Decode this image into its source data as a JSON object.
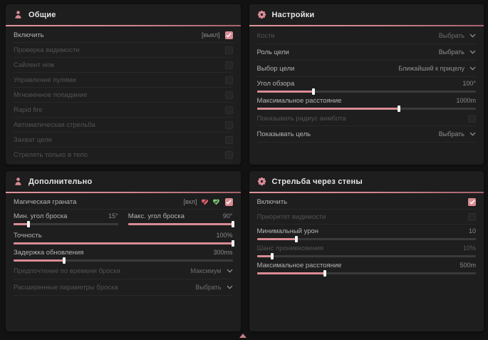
{
  "accent_color": "#d98b94",
  "panels": [
    {
      "title": "Общие",
      "icon": "aimbot-icon",
      "rows": [
        {
          "type": "toggle",
          "label": "Включить",
          "state_label": "[выкл]",
          "checked": true,
          "enabled": true
        },
        {
          "type": "toggle",
          "label": "Проверка видимости",
          "checked": false,
          "enabled": false
        },
        {
          "type": "toggle",
          "label": "Сайлент нож",
          "checked": false,
          "enabled": false
        },
        {
          "type": "toggle",
          "label": "Управление пулями",
          "checked": false,
          "enabled": false
        },
        {
          "type": "toggle",
          "label": "Мгновенное попадание",
          "checked": false,
          "enabled": false
        },
        {
          "type": "toggle",
          "label": "Rapid fire",
          "checked": false,
          "enabled": false
        },
        {
          "type": "toggle",
          "label": "Автоматическая стрельба",
          "checked": false,
          "enabled": false
        },
        {
          "type": "toggle",
          "label": "Захват цели",
          "checked": false,
          "enabled": false
        },
        {
          "type": "toggle",
          "label": "Стрелять только в тело",
          "checked": false,
          "enabled": false
        }
      ]
    },
    {
      "title": "Настройки",
      "icon": "gear-icon",
      "rows": [
        {
          "type": "dropdown",
          "label": "Кости",
          "value": "Выбрать",
          "enabled": false
        },
        {
          "type": "dropdown",
          "label": "Роль цели",
          "value": "Выбрать",
          "enabled": true
        },
        {
          "type": "dropdown",
          "label": "Выбор цели",
          "value": "Ближайший к прицелу",
          "enabled": true
        },
        {
          "type": "slider",
          "label": "Угол обзора",
          "value": "100°",
          "fill": 26,
          "enabled": true
        },
        {
          "type": "slider",
          "label": "Максимальное расстояние",
          "value": "1000m",
          "fill": 65,
          "enabled": true
        },
        {
          "type": "toggle",
          "label": "Показывать радиус аимбота",
          "checked": false,
          "enabled": false
        },
        {
          "type": "dropdown",
          "label": "Показывать цель",
          "value": "Выбрать",
          "enabled": true
        }
      ]
    },
    {
      "title": "Дополнительно",
      "icon": "aimbot-icon",
      "rows": [
        {
          "type": "toggle",
          "label": "Магическая граната",
          "state_label": "[вкл]",
          "badges": [
            "heart-off-icon",
            "heart-on-icon"
          ],
          "checked": true,
          "enabled": true
        },
        {
          "type": "dual_slider",
          "sliders": [
            {
              "label": "Мин. угол броска",
              "value": "15°",
              "fill": 14
            },
            {
              "label": "Макс. угол броска",
              "value": "90°",
              "fill": 100
            }
          ]
        },
        {
          "type": "slider",
          "label": "Точность",
          "value": "100%",
          "fill": 100,
          "enabled": true
        },
        {
          "type": "slider",
          "label": "Задержка обновления",
          "value": "300ms",
          "fill": 23,
          "enabled": true
        },
        {
          "type": "dropdown",
          "label": "Предпочтение по времени броска",
          "value": "Максимум",
          "enabled": false
        },
        {
          "type": "dropdown",
          "label": "Расширенные параметры броска",
          "value": "Выбрать",
          "enabled": false
        }
      ]
    },
    {
      "title": "Стрельба через стены",
      "icon": "gear-icon",
      "rows": [
        {
          "type": "toggle",
          "label": "Включить",
          "checked": true,
          "enabled": true
        },
        {
          "type": "toggle",
          "label": "Приоритет видимости",
          "checked": false,
          "enabled": false
        },
        {
          "type": "slider",
          "label": "Минимальный урон",
          "value": "10",
          "fill": 18,
          "enabled": true
        },
        {
          "type": "slider",
          "label": "Шанс проникновения",
          "value": "10%",
          "fill": 7,
          "enabled": false
        },
        {
          "type": "slider",
          "label": "Максимальное расстояние",
          "value": "500m",
          "fill": 31,
          "enabled": true
        }
      ]
    }
  ]
}
